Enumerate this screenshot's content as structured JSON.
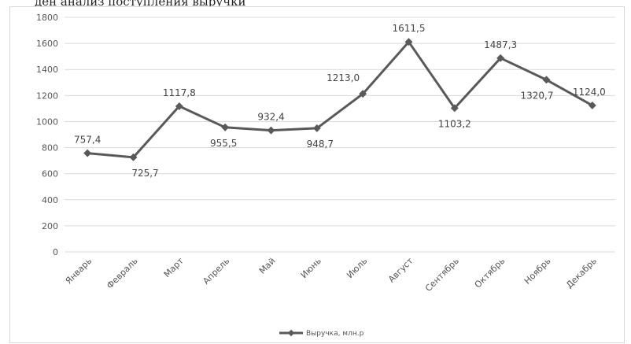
{
  "page": {
    "top_caption": "ден анализ поступления выручки"
  },
  "chart_data": {
    "type": "line",
    "title": "",
    "xlabel": "",
    "ylabel": "",
    "ylim": [
      0,
      1800
    ],
    "yticks": [
      0,
      200,
      400,
      600,
      800,
      1000,
      1200,
      1400,
      1600,
      1800
    ],
    "grid": true,
    "legend_position": "bottom",
    "categories": [
      "Январь",
      "Февраль",
      "Март",
      "Апрель",
      "Май",
      "Июнь",
      "Июль",
      "Август",
      "Сентябрь",
      "Октябрь",
      "Ноябрь",
      "Декабрь"
    ],
    "series": [
      {
        "name": "Выручка, млн.р",
        "color": "#595959",
        "values": [
          757.4,
          725.7,
          1117.8,
          955.5,
          932.4,
          948.7,
          1213.0,
          1611.5,
          1103.2,
          1487.3,
          1320.7,
          1124.0
        ],
        "value_labels": [
          "757,4",
          "725,7",
          "1117,8",
          "955,5",
          "932,4",
          "948,7",
          "1213,0",
          "1611,5",
          "1103,2",
          "1487,3",
          "1320,7",
          "1124,0"
        ]
      }
    ]
  }
}
